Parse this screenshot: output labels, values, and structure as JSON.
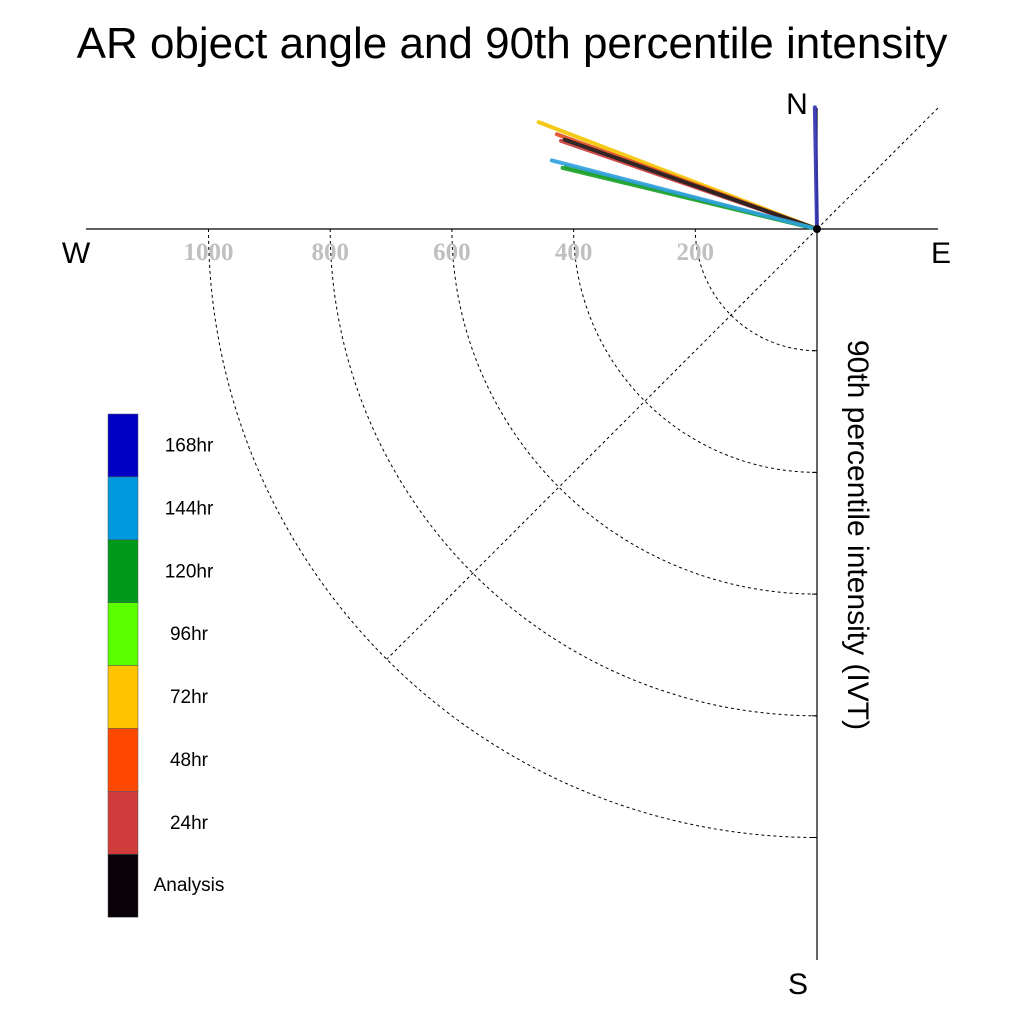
{
  "chart_data": {
    "type": "polar-vector",
    "title": "AR object angle and 90th percentile intensity",
    "radial_axis_label": "90th percentile intensity (IVT)",
    "directions": {
      "north": "N",
      "south": "S",
      "east": "E",
      "west": "W"
    },
    "radial_ticks": [
      200,
      400,
      600,
      800,
      1000
    ],
    "rlim": [
      0,
      1200
    ],
    "angle_range": "quarter-circle SW guides; vectors point W to N",
    "grid": true,
    "legend_position": "left",
    "legend": [
      {
        "label": "168hr",
        "color": "#0000c4"
      },
      {
        "label": "144hr",
        "color": "#0099e0"
      },
      {
        "label": "120hr",
        "color": "#009a1a"
      },
      {
        "label": "96hr",
        "color": "#5aff00"
      },
      {
        "label": "72hr",
        "color": "#ffc400"
      },
      {
        "label": "48hr",
        "color": "#ff4800"
      },
      {
        "label": "24hr",
        "color": "#d03c3c"
      },
      {
        "label": "Analysis",
        "color": "#0a0008"
      }
    ],
    "series": [
      {
        "name": "168hr",
        "color": "#2f2fb0",
        "magnitude": 200,
        "angle_deg_from_north": -1
      },
      {
        "name": "144hr",
        "color": "#2fa0e0",
        "magnitude": 450,
        "angle_deg_from_north": -75.5
      },
      {
        "name": "120hr",
        "color": "#1aa02a",
        "magnitude": 430,
        "angle_deg_from_north": -76.5
      },
      {
        "name": "96hr",
        "color": "#3ab030",
        "magnitude": 425,
        "angle_deg_from_north": -76.0
      },
      {
        "name": "72hr",
        "color": "#f4c400",
        "magnitude": 490,
        "angle_deg_from_north": -69.0
      },
      {
        "name": "48hr",
        "color": "#e04a20",
        "magnitude": 455,
        "angle_deg_from_north": -70.0
      },
      {
        "name": "24hr",
        "color": "#c83838",
        "magnitude": 445,
        "angle_deg_from_north": -71.0
      },
      {
        "name": "Analysis",
        "color": "#202020",
        "magnitude": 440,
        "angle_deg_from_north": -70.5
      }
    ]
  }
}
